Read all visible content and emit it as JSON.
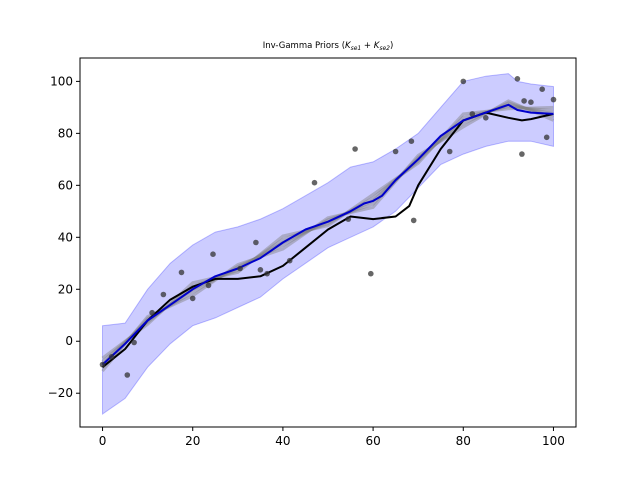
{
  "chart_data": {
    "type": "line",
    "title": "Inv-Gamma Priors ",
    "title_math": "(K_se1 + K_se2)",
    "title_math_parts": {
      "k1": "K",
      "s1": "se1",
      "plus": " + ",
      "k2": "K",
      "s2": "se2",
      "open": "(",
      "close": ")"
    },
    "xlabel": "",
    "ylabel": "",
    "xlim": [
      -5,
      105
    ],
    "ylim": [
      -33,
      109
    ],
    "x_ticks": [
      0,
      20,
      40,
      60,
      80,
      100
    ],
    "x_tick_labels": [
      "0",
      "20",
      "40",
      "60",
      "80",
      "100"
    ],
    "y_ticks": [
      -20,
      0,
      20,
      40,
      60,
      80,
      100
    ],
    "y_tick_labels": [
      "−20",
      "0",
      "20",
      "40",
      "60",
      "80",
      "100"
    ],
    "grid": false,
    "legend": "none",
    "colors": {
      "band": "#0000ff",
      "mean": "#0000cc",
      "truth": "#000000",
      "samples": "#808080",
      "points": "#333333"
    },
    "observed_points": [
      {
        "x": 0,
        "y": -9
      },
      {
        "x": 2,
        "y": -6
      },
      {
        "x": 5.5,
        "y": -13
      },
      {
        "x": 7,
        "y": -0.5
      },
      {
        "x": 11,
        "y": 11
      },
      {
        "x": 13.5,
        "y": 18
      },
      {
        "x": 17.5,
        "y": 26.5
      },
      {
        "x": 20,
        "y": 16.5
      },
      {
        "x": 23.5,
        "y": 21.5
      },
      {
        "x": 24.5,
        "y": 33.5
      },
      {
        "x": 30.5,
        "y": 28
      },
      {
        "x": 34,
        "y": 38
      },
      {
        "x": 35,
        "y": 27.5
      },
      {
        "x": 36.5,
        "y": 26
      },
      {
        "x": 41.5,
        "y": 31
      },
      {
        "x": 47,
        "y": 61
      },
      {
        "x": 54.5,
        "y": 47
      },
      {
        "x": 56,
        "y": 74
      },
      {
        "x": 59.5,
        "y": 26
      },
      {
        "x": 65,
        "y": 73
      },
      {
        "x": 68.5,
        "y": 77
      },
      {
        "x": 69,
        "y": 46.5
      },
      {
        "x": 77,
        "y": 73
      },
      {
        "x": 80,
        "y": 100
      },
      {
        "x": 82,
        "y": 87.5
      },
      {
        "x": 85,
        "y": 86
      },
      {
        "x": 92,
        "y": 101
      },
      {
        "x": 93,
        "y": 72
      },
      {
        "x": 93.5,
        "y": 92.5
      },
      {
        "x": 95,
        "y": 92
      },
      {
        "x": 97.5,
        "y": 97
      },
      {
        "x": 98.5,
        "y": 78.5
      },
      {
        "x": 100,
        "y": 93
      }
    ],
    "series": [
      {
        "x": [
          0,
          5,
          10,
          15,
          20,
          25,
          30,
          35,
          40,
          45,
          50,
          55,
          58,
          60,
          62,
          65,
          70,
          75,
          80,
          85,
          90,
          92,
          95,
          100
        ],
        "values": [
          -9,
          -1,
          8,
          14,
          20,
          25,
          28,
          32,
          38,
          43,
          46,
          50,
          53,
          54,
          56,
          62,
          70,
          79,
          85,
          88,
          91,
          89,
          88,
          87.5
        ]
      },
      {
        "x": [
          0,
          5,
          10,
          15,
          20,
          25,
          30,
          35,
          40,
          45,
          50,
          55,
          60,
          65,
          68,
          70,
          75,
          80,
          85,
          90,
          93,
          95,
          100
        ],
        "values": [
          -10,
          -3,
          8,
          16,
          21,
          24,
          24,
          25,
          29,
          36,
          43,
          48,
          47,
          48,
          52,
          60,
          74,
          85,
          88,
          86,
          85,
          85.5,
          87.5
        ]
      }
    ],
    "band": {
      "x": [
        0,
        5,
        10,
        15,
        20,
        25,
        30,
        35,
        40,
        45,
        50,
        55,
        60,
        65,
        70,
        75,
        80,
        85,
        90,
        92,
        95,
        100
      ],
      "upper": [
        6,
        7,
        20,
        30,
        37,
        42,
        44,
        47,
        51,
        56,
        61,
        67,
        69,
        74,
        80,
        90,
        100,
        102,
        103,
        100,
        99,
        98
      ],
      "lower": [
        -28,
        -22,
        -10,
        -1,
        6,
        9,
        13,
        17,
        24,
        30,
        36,
        40,
        44,
        50,
        59,
        68,
        72,
        75,
        77,
        77,
        77,
        75
      ]
    },
    "samples": {
      "x": [
        0,
        10,
        20,
        30,
        40,
        50,
        60,
        70,
        80,
        90,
        100
      ],
      "offsets": [
        -2.5,
        -1.2,
        0,
        1.2,
        2.5
      ]
    }
  }
}
